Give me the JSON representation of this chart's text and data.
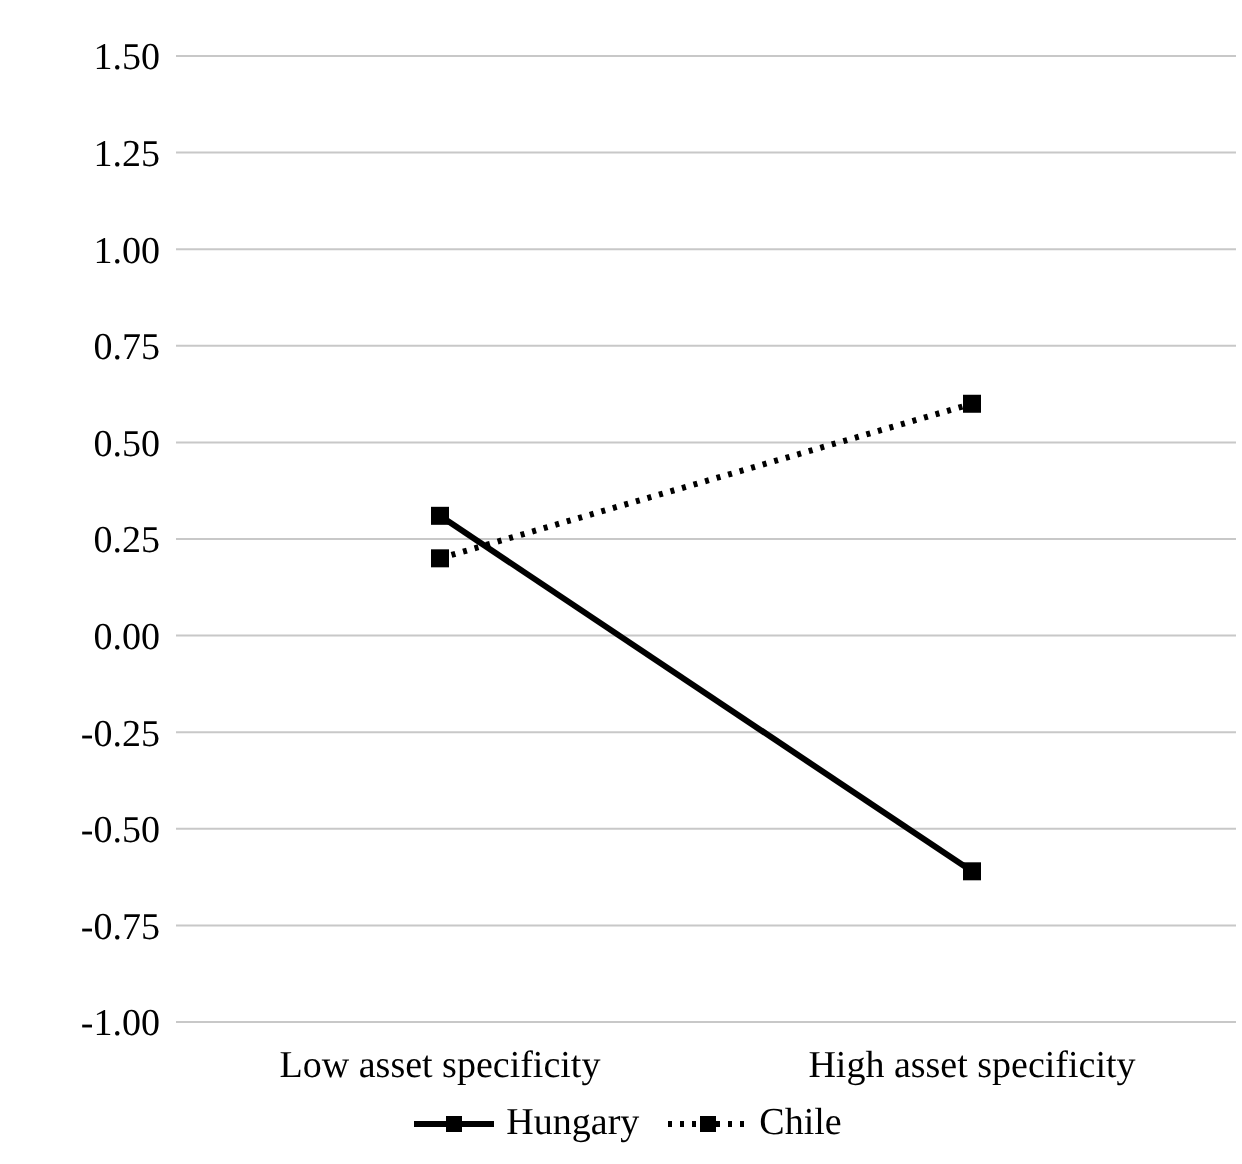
{
  "chart_data": {
    "type": "line",
    "categories": [
      "Low asset specificity",
      "High asset specificity"
    ],
    "series": [
      {
        "name": "Hungary",
        "color": "#000000",
        "values": [
          0.31,
          -0.61
        ],
        "line_style": "solid"
      },
      {
        "name": "Chile",
        "color": "#000000",
        "values": [
          0.2,
          0.6
        ],
        "line_style": "dotted"
      }
    ],
    "ylim": [
      -1,
      1.5
    ],
    "yticks": [
      {
        "value": -1,
        "label": "-1.00"
      },
      {
        "value": -0.75,
        "label": "-0.75"
      },
      {
        "value": -0.5,
        "label": "-0.50"
      },
      {
        "value": -0.25,
        "label": "-0.25"
      },
      {
        "value": 0,
        "label": "0.00"
      },
      {
        "value": 0.25,
        "label": "0.25"
      },
      {
        "value": 0.5,
        "label": "0.50"
      },
      {
        "value": 0.75,
        "label": "0.75"
      },
      {
        "value": 1,
        "label": "1.00"
      },
      {
        "value": 1.25,
        "label": "1.25"
      },
      {
        "value": 1.5,
        "label": "1.50"
      }
    ],
    "grid": "y",
    "legend": "bottom",
    "marker": "square"
  }
}
